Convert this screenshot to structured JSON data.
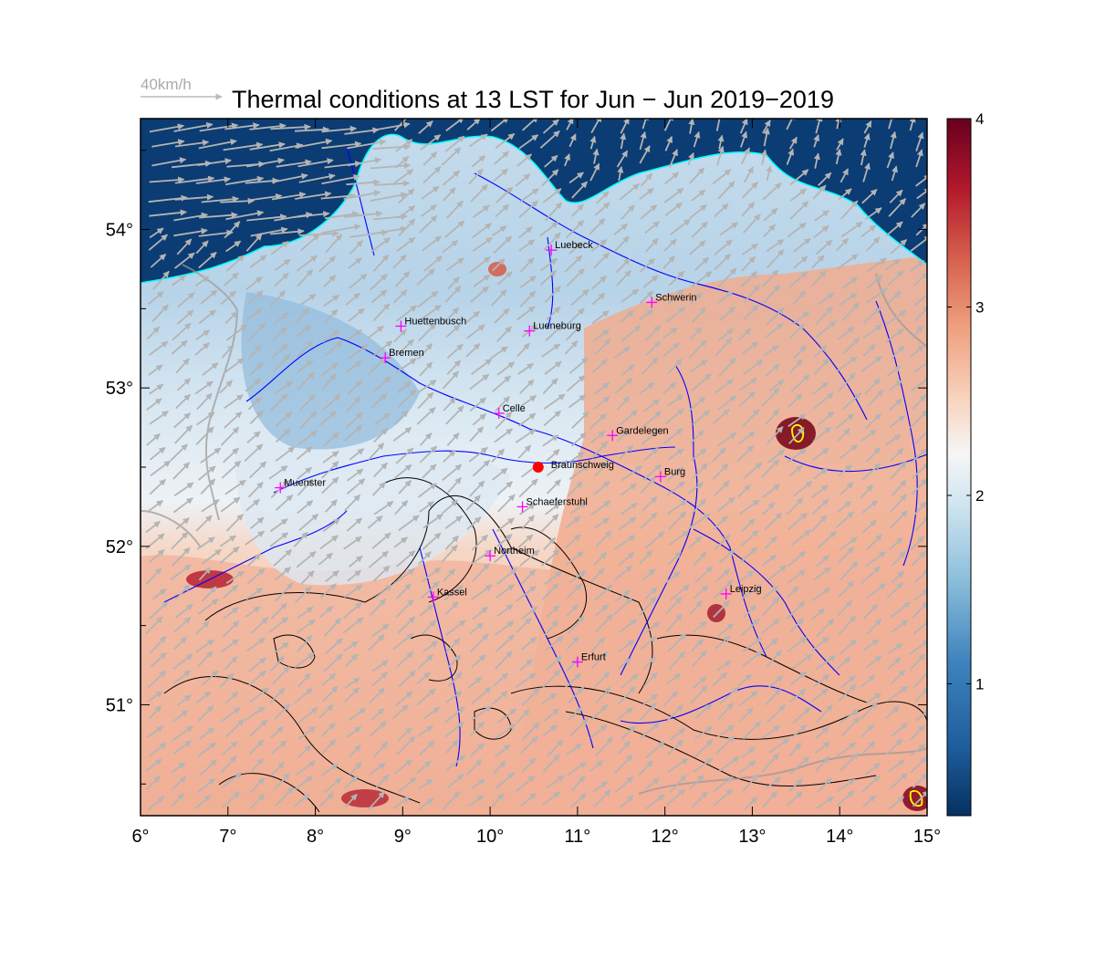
{
  "title": "Thermal conditions at 13 LST for Jun − Jun  2019−2019",
  "wind_scale_label": "40km/h",
  "x_ticks": [
    "6°",
    "7°",
    "8°",
    "9°",
    "10°",
    "11°",
    "12°",
    "13°",
    "14°",
    "15°"
  ],
  "y_ticks": [
    "51°",
    "52°",
    "53°",
    "54°"
  ],
  "colorbar": {
    "labels": [
      "1",
      "2",
      "3",
      "4"
    ],
    "min": 0.3,
    "max": 4.0
  },
  "map": {
    "lon_range": [
      6,
      15
    ],
    "lat_range": [
      50.3,
      54.7
    ]
  },
  "colors": {
    "sea": "#0b3c73",
    "coast": "#00ffff",
    "rivers": "#0000ff",
    "contours": "#000000",
    "wind_arrows": "#b4b4b4",
    "city_marker": "#ff00ff",
    "site_marker": "#ff0000",
    "highlight_contour": "#ffff00"
  },
  "cities": [
    {
      "name": "Luebeck",
      "lon": 10.7,
      "lat": 53.87
    },
    {
      "name": "Schwerin",
      "lon": 11.85,
      "lat": 53.54
    },
    {
      "name": "Huettenbusch",
      "lon": 8.98,
      "lat": 53.39
    },
    {
      "name": "Lueneburg",
      "lon": 10.45,
      "lat": 53.36
    },
    {
      "name": "Bremen",
      "lon": 8.8,
      "lat": 53.19
    },
    {
      "name": "Celle",
      "lon": 10.1,
      "lat": 52.84
    },
    {
      "name": "Gardelegen",
      "lon": 11.4,
      "lat": 52.7
    },
    {
      "name": "Burg",
      "lon": 11.95,
      "lat": 52.44
    },
    {
      "name": "Muenster",
      "lon": 7.6,
      "lat": 52.37
    },
    {
      "name": "Schaeferstuhl",
      "lon": 10.37,
      "lat": 52.25
    },
    {
      "name": "Northeim",
      "lon": 10.0,
      "lat": 51.94
    },
    {
      "name": "Kassel",
      "lon": 9.35,
      "lat": 51.68
    },
    {
      "name": "Leipzig",
      "lon": 12.7,
      "lat": 51.7
    },
    {
      "name": "Erfurt",
      "lon": 11.0,
      "lat": 51.27
    }
  ],
  "site": {
    "name": "Braunschweig",
    "lon": 10.55,
    "lat": 52.5
  }
}
